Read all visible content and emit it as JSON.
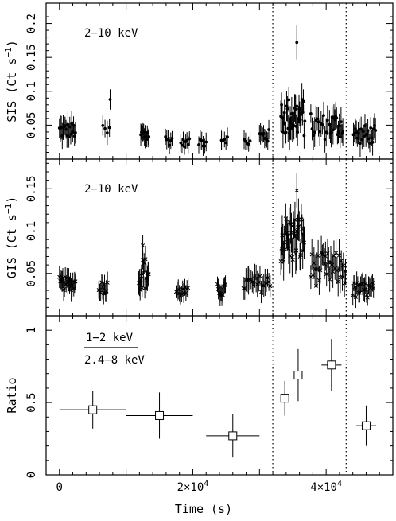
{
  "figure": {
    "xlabel": "Time (s)",
    "x_ticks": [
      {
        "value": 0,
        "label": "0"
      },
      {
        "value": 20000,
        "label": "2×10",
        "sup": "4"
      },
      {
        "value": 40000,
        "label": "4×10",
        "sup": "4"
      }
    ],
    "xlim": [
      -2000,
      50000
    ],
    "dotted_lines_x": [
      32000,
      43000
    ],
    "marker_color": "#000000"
  },
  "chart_data": [
    {
      "type": "scatter",
      "name": "sis-panel",
      "label": "2−10 keV",
      "ylabel": "SIS (Ct s",
      "ylabel_sup": "−1",
      "ylabel_end": ")",
      "ylim": [
        0,
        0.23
      ],
      "yticks": [
        0.05,
        0.1,
        0.15,
        0.2
      ],
      "ytick_labels": [
        "0.05",
        "0.1",
        "0.15",
        "0.2"
      ],
      "marker": "dot",
      "segments": [
        {
          "t0": 0,
          "t1": 2400,
          "n": 18,
          "base": 0.042,
          "amp": 0.012,
          "err": 0.016
        },
        {
          "t0": 6500,
          "t1": 7500,
          "n": 4,
          "base": 0.04,
          "amp": 0.01,
          "err": 0.015
        },
        {
          "t0": 12200,
          "t1": 13400,
          "n": 12,
          "base": 0.035,
          "amp": 0.012,
          "err": 0.014
        },
        {
          "t0": 15900,
          "t1": 16900,
          "n": 6,
          "base": 0.028,
          "amp": 0.008,
          "err": 0.012
        },
        {
          "t0": 18200,
          "t1": 19500,
          "n": 8,
          "base": 0.024,
          "amp": 0.006,
          "err": 0.011
        },
        {
          "t0": 20900,
          "t1": 22000,
          "n": 6,
          "base": 0.026,
          "amp": 0.008,
          "err": 0.012
        },
        {
          "t0": 24300,
          "t1": 25200,
          "n": 5,
          "base": 0.03,
          "amp": 0.006,
          "err": 0.012
        },
        {
          "t0": 27700,
          "t1": 28600,
          "n": 5,
          "base": 0.025,
          "amp": 0.006,
          "err": 0.011
        },
        {
          "t0": 30000,
          "t1": 31400,
          "n": 10,
          "base": 0.034,
          "amp": 0.01,
          "err": 0.013
        },
        {
          "t0": 33200,
          "t1": 36800,
          "n": 34,
          "base": 0.062,
          "amp": 0.03,
          "err": 0.02
        },
        {
          "t0": 37700,
          "t1": 40200,
          "n": 14,
          "base": 0.048,
          "amp": 0.02,
          "err": 0.018
        },
        {
          "t0": 40500,
          "t1": 42500,
          "n": 16,
          "base": 0.05,
          "amp": 0.02,
          "err": 0.018
        },
        {
          "t0": 44100,
          "t1": 47400,
          "n": 24,
          "base": 0.036,
          "amp": 0.014,
          "err": 0.016
        }
      ],
      "highlights": [
        {
          "x": 7600,
          "y": 0.088,
          "err": 0.015
        },
        {
          "x": 35600,
          "y": 0.172,
          "err": 0.025
        }
      ]
    },
    {
      "type": "scatter",
      "name": "gis-panel",
      "label": "2−10 keV",
      "ylabel": "GIS (Ct s",
      "ylabel_sup": "−1",
      "ylabel_end": ")",
      "ylim": [
        0,
        0.185
      ],
      "yticks": [
        0.05,
        0.1,
        0.15
      ],
      "ytick_labels": [
        "0.05",
        "0.1",
        "0.15"
      ],
      "marker": "cross",
      "segments": [
        {
          "t0": 0,
          "t1": 2400,
          "n": 20,
          "base": 0.038,
          "amp": 0.008,
          "err": 0.012
        },
        {
          "t0": 5900,
          "t1": 7200,
          "n": 10,
          "base": 0.034,
          "amp": 0.008,
          "err": 0.012
        },
        {
          "t0": 11900,
          "t1": 13400,
          "n": 16,
          "base": 0.05,
          "amp": 0.02,
          "err": 0.014
        },
        {
          "t0": 17500,
          "t1": 19300,
          "n": 12,
          "base": 0.028,
          "amp": 0.006,
          "err": 0.01
        },
        {
          "t0": 23700,
          "t1": 24900,
          "n": 10,
          "base": 0.03,
          "amp": 0.008,
          "err": 0.011
        },
        {
          "t0": 27600,
          "t1": 31600,
          "n": 22,
          "base": 0.038,
          "amp": 0.01,
          "err": 0.014
        },
        {
          "t0": 33200,
          "t1": 36700,
          "n": 34,
          "base": 0.09,
          "amp": 0.03,
          "err": 0.02
        },
        {
          "t0": 37700,
          "t1": 42900,
          "n": 34,
          "base": 0.055,
          "amp": 0.02,
          "err": 0.016
        },
        {
          "t0": 44000,
          "t1": 47100,
          "n": 22,
          "base": 0.03,
          "amp": 0.01,
          "err": 0.012
        }
      ],
      "highlights": [
        {
          "x": 12500,
          "y": 0.083,
          "err": 0.012
        },
        {
          "x": 35600,
          "y": 0.148,
          "err": 0.02
        }
      ]
    },
    {
      "type": "scatter",
      "name": "ratio-panel",
      "label_numerator": "1−2 keV",
      "label_denominator": "2.4−8 keV",
      "ylabel": "Ratio",
      "ylim": [
        0,
        1.1
      ],
      "yticks": [
        0,
        0.5,
        1
      ],
      "ytick_labels": [
        "0",
        "0.5",
        "1"
      ],
      "marker": "square",
      "points": [
        {
          "x": 5000,
          "y": 0.45,
          "xerr": 5000,
          "yerr": 0.13
        },
        {
          "x": 15000,
          "y": 0.41,
          "xerr": 5000,
          "yerr": 0.16
        },
        {
          "x": 26000,
          "y": 0.27,
          "xerr": 4000,
          "yerr": 0.15
        },
        {
          "x": 33800,
          "y": 0.53,
          "xerr": 500,
          "yerr": 0.12
        },
        {
          "x": 35800,
          "y": 0.69,
          "xerr": 800,
          "yerr": 0.18
        },
        {
          "x": 40800,
          "y": 0.76,
          "xerr": 1500,
          "yerr": 0.18
        },
        {
          "x": 46000,
          "y": 0.34,
          "xerr": 1500,
          "yerr": 0.14
        }
      ]
    }
  ]
}
